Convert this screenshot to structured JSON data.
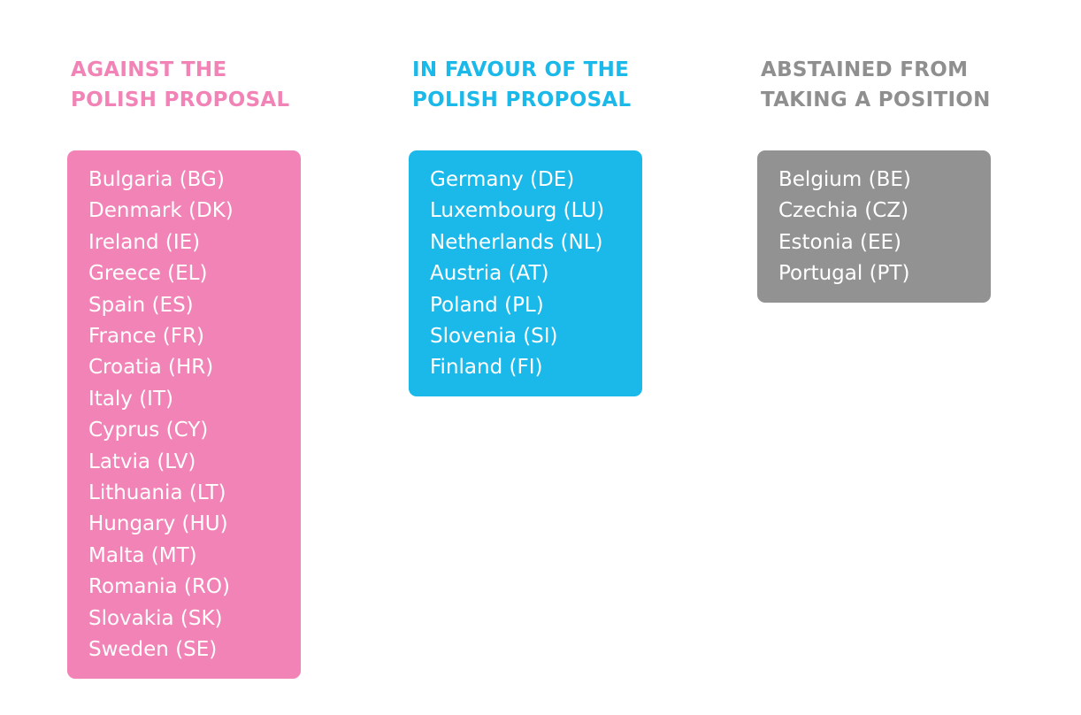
{
  "columns": [
    {
      "heading": [
        "AGAINST THE",
        "POLISH PROPOSAL"
      ],
      "countries": [
        "Bulgaria (BG)",
        "Denmark (DK)",
        "Ireland (IE)",
        "Greece (EL)",
        "Spain (ES)",
        "France (FR)",
        "Croatia (HR)",
        "Italy (IT)",
        "Cyprus (CY)",
        "Latvia (LV)",
        "Lithuania (LT)",
        "Hungary (HU)",
        "Malta (MT)",
        "Romania (RO)",
        "Slovakia (SK)",
        "Sweden (SE)"
      ]
    },
    {
      "heading": [
        "IN FAVOUR OF THE",
        "POLISH PROPOSAL"
      ],
      "countries": [
        "Germany (DE)",
        "Luxembourg (LU)",
        "Netherlands (NL)",
        "Austria (AT)",
        "Poland (PL)",
        "Slovenia (SI)",
        "Finland (FI)"
      ]
    },
    {
      "heading": [
        "ABSTAINED FROM",
        "TAKING A POSITION"
      ],
      "countries": [
        "Belgium (BE)",
        "Czechia (CZ)",
        "Estonia (EE)",
        "Portugal (PT)"
      ]
    }
  ]
}
